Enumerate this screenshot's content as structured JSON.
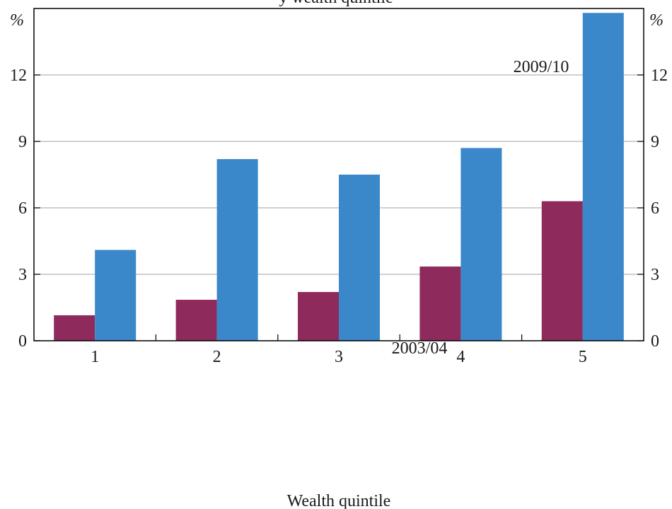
{
  "chart_data": {
    "type": "bar",
    "title": "y wealth quintile",
    "xlabel": "Wealth quintile",
    "ylabel_left": "%",
    "ylabel_right": "%",
    "categories": [
      "1",
      "2",
      "3",
      "4",
      "5"
    ],
    "ylim": [
      0,
      15
    ],
    "yticks": [
      0,
      3,
      6,
      9,
      12
    ],
    "grid": true,
    "series": [
      {
        "name": "2003/04",
        "color": "#8e2a5c",
        "values": [
          1.15,
          1.85,
          2.2,
          3.35,
          6.3
        ]
      },
      {
        "name": "2009/10",
        "color": "#3a87c9",
        "values": [
          4.1,
          8.2,
          7.5,
          8.7,
          14.8
        ]
      }
    ]
  }
}
